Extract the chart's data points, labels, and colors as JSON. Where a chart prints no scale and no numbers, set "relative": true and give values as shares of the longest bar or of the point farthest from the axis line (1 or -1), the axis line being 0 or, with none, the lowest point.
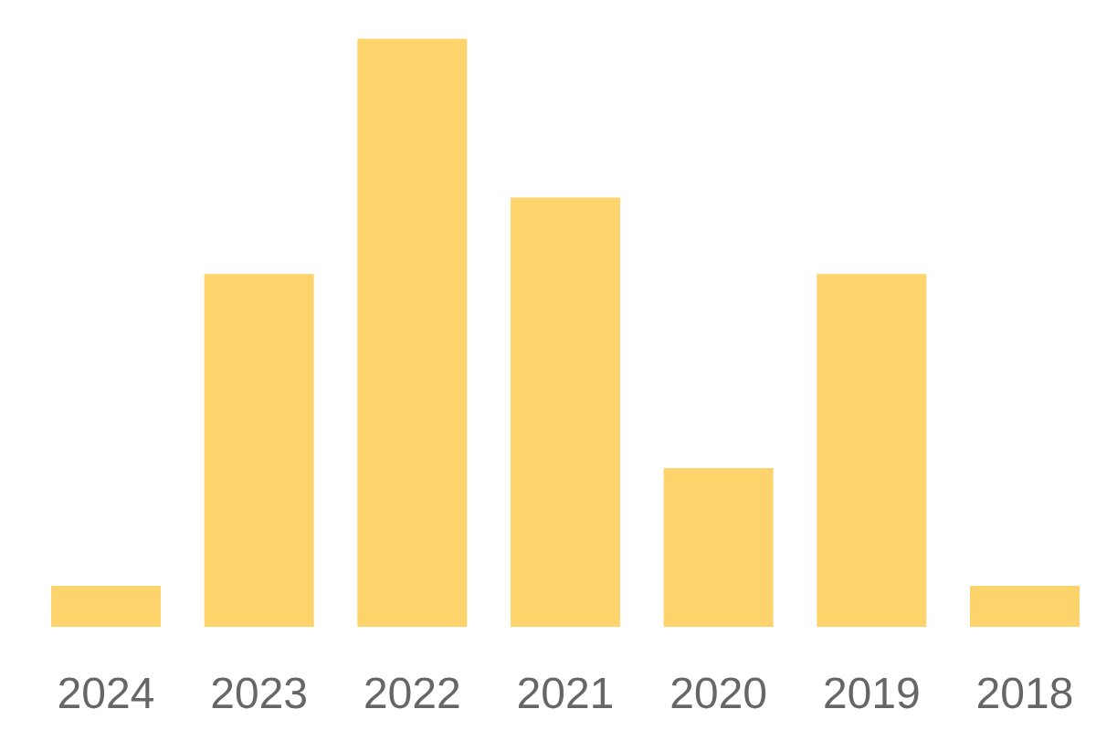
{
  "chart_data": {
    "type": "bar",
    "categories": [
      "2024",
      "2023",
      "2022",
      "2021",
      "2020",
      "2019",
      "2018"
    ],
    "values": [
      0.07,
      0.6,
      1,
      0.73,
      0.27,
      0.6,
      0.07
    ],
    "color": "#fdd46c",
    "relative": true
  }
}
